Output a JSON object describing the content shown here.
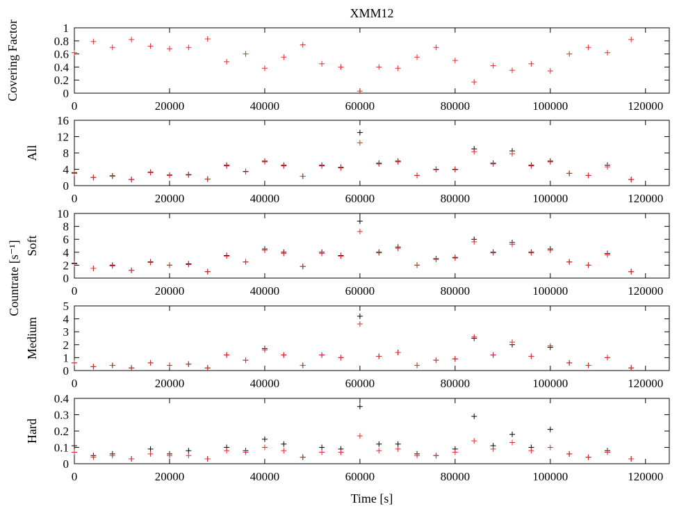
{
  "chart_data": {
    "type": "scatter",
    "title": "XMM12",
    "xlabel": "Time [s]",
    "shared_ylabel": "Countrate [s⁻¹]",
    "xlim": [
      0,
      125000
    ],
    "xticks": [
      0,
      20000,
      40000,
      60000,
      80000,
      100000,
      120000
    ],
    "colors": {
      "black_series": "#000000",
      "red_series": "#e8262a",
      "axes": "#000000",
      "background": "#ffffff"
    },
    "marker": "plus",
    "legend": "none",
    "grid": false,
    "panels": [
      {
        "id": "covering",
        "ylabel": "Covering Factor",
        "ylim": [
          0,
          1
        ],
        "yticks": [
          0,
          0.2,
          0.4,
          0.6,
          0.8,
          1
        ],
        "ytick_labels": [
          "0",
          "0.2",
          "0.4",
          "0.6",
          "0.8",
          "1"
        ],
        "series": [
          {
            "color": "red",
            "x": [
              0,
              4000,
              8000,
              12000,
              16000,
              20000,
              24000,
              28000,
              32000,
              36000,
              40000,
              44000,
              48000,
              52000,
              56000,
              60000,
              64000,
              68000,
              72000,
              76000,
              80000,
              84000,
              88000,
              92000,
              96000,
              100000,
              104000,
              108000,
              112000,
              117000
            ],
            "y": [
              0.62,
              0.79,
              0.7,
              0.82,
              0.72,
              0.68,
              0.7,
              0.83,
              0.48,
              0.6,
              0.38,
              0.55,
              0.74,
              0.45,
              0.4,
              0.03,
              0.4,
              0.38,
              0.55,
              0.7,
              0.5,
              0.17,
              0.42,
              0.35,
              0.45,
              0.34,
              0.6,
              0.7,
              0.62,
              0.82
            ]
          }
        ]
      },
      {
        "id": "all",
        "ylabel": "All",
        "ylim": [
          0,
          16
        ],
        "yticks": [
          0,
          4,
          8,
          12,
          16
        ],
        "ytick_labels": [
          "0",
          "4",
          "8",
          "12",
          "16"
        ],
        "series": [
          {
            "color": "black",
            "x": [
              0,
              4000,
              8000,
              12000,
              16000,
              20000,
              24000,
              28000,
              32000,
              36000,
              40000,
              44000,
              48000,
              52000,
              56000,
              60000,
              64000,
              68000,
              72000,
              76000,
              80000,
              84000,
              88000,
              92000,
              96000,
              100000,
              104000,
              108000,
              112000,
              117000
            ],
            "y": [
              3.2,
              2.0,
              2.4,
              1.5,
              3.3,
              2.6,
              2.7,
              1.6,
              5.0,
              3.5,
              6.0,
              5.0,
              2.3,
              5.0,
              4.5,
              13.0,
              5.5,
              6.0,
              2.5,
              4.0,
              4.0,
              9.0,
              5.5,
              8.5,
              5.0,
              6.0,
              3.0,
              2.5,
              5.0,
              1.5
            ]
          },
          {
            "color": "red",
            "x": [
              0,
              4000,
              8000,
              12000,
              16000,
              20000,
              24000,
              28000,
              32000,
              36000,
              40000,
              44000,
              48000,
              52000,
              56000,
              60000,
              64000,
              68000,
              72000,
              76000,
              80000,
              84000,
              88000,
              92000,
              96000,
              100000,
              104000,
              108000,
              112000,
              117000
            ],
            "y": [
              3.0,
              2.0,
              2.3,
              1.5,
              3.2,
              2.5,
              2.6,
              1.6,
              4.8,
              3.4,
              5.8,
              4.8,
              2.3,
              4.8,
              4.3,
              10.5,
              5.3,
              5.8,
              2.5,
              3.9,
              3.9,
              8.3,
              5.3,
              7.8,
              4.8,
              5.8,
              3.0,
              2.5,
              4.6,
              1.5
            ]
          }
        ]
      },
      {
        "id": "soft",
        "ylabel": "Soft",
        "ylim": [
          0,
          10
        ],
        "yticks": [
          0,
          2,
          4,
          6,
          8,
          10
        ],
        "ytick_labels": [
          "0",
          "2",
          "4",
          "6",
          "8",
          "10"
        ],
        "series": [
          {
            "color": "black",
            "x": [
              0,
              4000,
              8000,
              12000,
              16000,
              20000,
              24000,
              28000,
              32000,
              36000,
              40000,
              44000,
              48000,
              52000,
              56000,
              60000,
              64000,
              68000,
              72000,
              76000,
              80000,
              84000,
              88000,
              92000,
              96000,
              100000,
              104000,
              108000,
              112000,
              117000
            ],
            "y": [
              2.3,
              1.5,
              2.0,
              1.2,
              2.5,
              2.0,
              2.2,
              1.0,
              3.5,
              2.5,
              4.5,
              4.0,
              1.8,
              4.0,
              3.5,
              8.8,
              4.0,
              4.8,
              2.0,
              3.0,
              3.2,
              6.0,
              4.0,
              5.5,
              4.0,
              4.5,
              2.5,
              2.0,
              3.8,
              1.0
            ]
          },
          {
            "color": "red",
            "x": [
              0,
              4000,
              8000,
              12000,
              16000,
              20000,
              24000,
              28000,
              32000,
              36000,
              40000,
              44000,
              48000,
              52000,
              56000,
              60000,
              64000,
              68000,
              72000,
              76000,
              80000,
              84000,
              88000,
              92000,
              96000,
              100000,
              104000,
              108000,
              112000,
              117000
            ],
            "y": [
              2.2,
              1.5,
              1.9,
              1.2,
              2.4,
              2.0,
              2.1,
              1.0,
              3.4,
              2.5,
              4.3,
              3.8,
              1.8,
              3.8,
              3.4,
              7.2,
              3.9,
              4.6,
              2.0,
              2.9,
              3.1,
              5.6,
              3.9,
              5.2,
              3.9,
              4.3,
              2.5,
              2.0,
              3.6,
              1.0
            ]
          }
        ]
      },
      {
        "id": "medium",
        "ylabel": "Medium",
        "ylim": [
          0,
          5
        ],
        "yticks": [
          0,
          1,
          2,
          3,
          4,
          5
        ],
        "ytick_labels": [
          "0",
          "1",
          "2",
          "3",
          "4",
          "5"
        ],
        "series": [
          {
            "color": "black",
            "x": [
              0,
              4000,
              8000,
              12000,
              16000,
              20000,
              24000,
              28000,
              32000,
              36000,
              40000,
              44000,
              48000,
              52000,
              56000,
              60000,
              64000,
              68000,
              72000,
              76000,
              80000,
              84000,
              88000,
              92000,
              96000,
              100000,
              104000,
              108000,
              112000,
              117000
            ],
            "y": [
              0.6,
              0.3,
              0.4,
              0.2,
              0.6,
              0.4,
              0.5,
              0.2,
              1.2,
              0.8,
              1.7,
              1.2,
              0.4,
              1.2,
              1.0,
              4.2,
              1.1,
              1.4,
              0.4,
              0.8,
              0.9,
              2.5,
              1.2,
              2.0,
              1.1,
              1.8,
              0.6,
              0.4,
              1.0,
              0.2
            ]
          },
          {
            "color": "red",
            "x": [
              0,
              4000,
              8000,
              12000,
              16000,
              20000,
              24000,
              28000,
              32000,
              36000,
              40000,
              44000,
              48000,
              52000,
              56000,
              60000,
              64000,
              68000,
              72000,
              76000,
              80000,
              84000,
              88000,
              92000,
              96000,
              100000,
              104000,
              108000,
              112000,
              117000
            ],
            "y": [
              0.6,
              0.3,
              0.4,
              0.2,
              0.6,
              0.4,
              0.5,
              0.2,
              1.2,
              0.8,
              1.6,
              1.2,
              0.4,
              1.2,
              1.0,
              3.6,
              1.1,
              1.4,
              0.4,
              0.8,
              0.9,
              2.6,
              1.2,
              2.2,
              1.1,
              1.9,
              0.6,
              0.4,
              1.0,
              0.2
            ]
          }
        ]
      },
      {
        "id": "hard",
        "ylabel": "Hard",
        "ylim": [
          0,
          0.4
        ],
        "yticks": [
          0,
          0.1,
          0.2,
          0.3,
          0.4
        ],
        "ytick_labels": [
          "0",
          "0.1",
          "0.2",
          "0.3",
          "0.4"
        ],
        "series": [
          {
            "color": "black",
            "x": [
              0,
              4000,
              8000,
              12000,
              16000,
              20000,
              24000,
              28000,
              32000,
              36000,
              40000,
              44000,
              48000,
              52000,
              56000,
              60000,
              64000,
              68000,
              72000,
              76000,
              80000,
              84000,
              88000,
              92000,
              96000,
              100000,
              104000,
              108000,
              112000,
              117000
            ],
            "y": [
              0.11,
              0.05,
              0.06,
              0.03,
              0.09,
              0.06,
              0.08,
              0.03,
              0.1,
              0.08,
              0.15,
              0.12,
              0.04,
              0.1,
              0.09,
              0.35,
              0.12,
              0.12,
              0.06,
              0.05,
              0.09,
              0.29,
              0.11,
              0.18,
              0.1,
              0.21,
              0.06,
              0.04,
              0.08,
              0.03
            ]
          },
          {
            "color": "red",
            "x": [
              0,
              4000,
              8000,
              12000,
              16000,
              20000,
              24000,
              28000,
              32000,
              36000,
              40000,
              44000,
              48000,
              52000,
              56000,
              60000,
              64000,
              68000,
              72000,
              76000,
              80000,
              84000,
              88000,
              92000,
              96000,
              100000,
              104000,
              108000,
              112000,
              117000
            ],
            "y": [
              0.07,
              0.04,
              0.05,
              0.03,
              0.06,
              0.05,
              0.05,
              0.03,
              0.08,
              0.07,
              0.1,
              0.08,
              0.04,
              0.07,
              0.07,
              0.17,
              0.08,
              0.09,
              0.05,
              0.05,
              0.07,
              0.14,
              0.09,
              0.13,
              0.08,
              0.1,
              0.06,
              0.04,
              0.07,
              0.03
            ]
          }
        ]
      }
    ]
  }
}
